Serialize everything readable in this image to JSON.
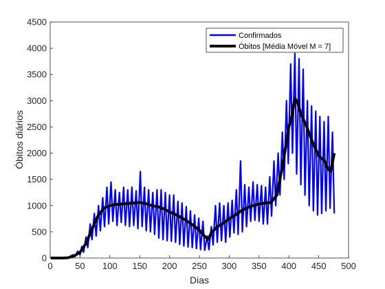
{
  "chart_data": {
    "type": "line",
    "xlabel": "Dias",
    "ylabel": "Óbitos diários",
    "xlim": [
      0,
      500
    ],
    "ylim": [
      0,
      4500
    ],
    "xticks": [
      0,
      50,
      100,
      150,
      200,
      250,
      300,
      350,
      400,
      450,
      500
    ],
    "yticks": [
      0,
      500,
      1000,
      1500,
      2000,
      2500,
      3000,
      3500,
      4000,
      4500
    ],
    "grid": false,
    "legend_position": "top-right",
    "series": [
      {
        "name": "Confirmados",
        "color": "#0000ff",
        "description": "daily values with strong weekly oscillation",
        "x": [
          1,
          20,
          30,
          38,
          42,
          46,
          50,
          53,
          56,
          60,
          63,
          67,
          70,
          74,
          77,
          81,
          84,
          88,
          91,
          95,
          98,
          102,
          105,
          109,
          112,
          116,
          119,
          123,
          126,
          130,
          133,
          137,
          140,
          144,
          147,
          151,
          154,
          158,
          161,
          165,
          168,
          172,
          175,
          179,
          182,
          186,
          189,
          193,
          196,
          200,
          203,
          207,
          210,
          214,
          217,
          221,
          224,
          228,
          231,
          235,
          238,
          242,
          245,
          249,
          252,
          256,
          259,
          263,
          266,
          270,
          273,
          277,
          280,
          284,
          287,
          291,
          294,
          298,
          301,
          305,
          308,
          312,
          315,
          319,
          322,
          326,
          329,
          333,
          336,
          340,
          343,
          347,
          350,
          354,
          357,
          361,
          364,
          368,
          371,
          375,
          378,
          382,
          385,
          389,
          392,
          396,
          399,
          403,
          406,
          410,
          413,
          417,
          420,
          424,
          427,
          431,
          434,
          438,
          441,
          445,
          448,
          452,
          455,
          459,
          462,
          466,
          469,
          473,
          476
        ],
        "y": [
          0,
          0,
          10,
          60,
          30,
          130,
          60,
          220,
          110,
          400,
          200,
          650,
          350,
          850,
          420,
          1000,
          520,
          1150,
          600,
          1350,
          650,
          1450,
          700,
          1300,
          620,
          1250,
          680,
          1350,
          620,
          1300,
          600,
          1350,
          620,
          1280,
          560,
          1650,
          600,
          1350,
          520,
          1300,
          500,
          1250,
          450,
          1300,
          380,
          1300,
          350,
          1250,
          330,
          1200,
          320,
          1200,
          300,
          1080,
          260,
          1050,
          230,
          980,
          210,
          900,
          200,
          820,
          180,
          760,
          160,
          700,
          150,
          420,
          160,
          600,
          250,
          1000,
          300,
          1050,
          330,
          1000,
          300,
          1050,
          400,
          1100,
          480,
          1300,
          450,
          1850,
          500,
          1400,
          600,
          1350,
          700,
          1450,
          720,
          1400,
          700,
          1380,
          650,
          1350,
          650,
          1550,
          800,
          1850,
          1000,
          2000,
          1200,
          2400,
          1500,
          3000,
          1800,
          3700,
          2000,
          3900,
          1600,
          3800,
          1400,
          3600,
          1200,
          3000,
          1000,
          2900,
          900,
          2800,
          820,
          2700,
          850,
          2600,
          900,
          2700,
          950,
          2400,
          850
        ]
      },
      {
        "name": "Óbitos [Média Móvel M = 7]",
        "color": "#000000",
        "description": "7-day moving average",
        "x": [
          1,
          20,
          30,
          40,
          50,
          60,
          70,
          80,
          90,
          100,
          110,
          120,
          130,
          140,
          150,
          160,
          170,
          180,
          190,
          200,
          210,
          220,
          230,
          240,
          250,
          260,
          265,
          270,
          280,
          290,
          300,
          310,
          320,
          330,
          340,
          350,
          360,
          370,
          380,
          390,
          400,
          405,
          410,
          415,
          420,
          430,
          440,
          450,
          460,
          465,
          470,
          476
        ],
        "y": [
          0,
          0,
          5,
          40,
          110,
          280,
          550,
          800,
          950,
          1000,
          1020,
          1030,
          1040,
          1050,
          1060,
          1040,
          1000,
          980,
          940,
          880,
          830,
          770,
          700,
          620,
          530,
          400,
          360,
          480,
          600,
          660,
          750,
          820,
          900,
          960,
          1000,
          1030,
          1050,
          1060,
          1200,
          1800,
          2500,
          2700,
          3050,
          2950,
          2750,
          2500,
          2200,
          1950,
          1850,
          1700,
          1650,
          2000
        ]
      }
    ]
  }
}
